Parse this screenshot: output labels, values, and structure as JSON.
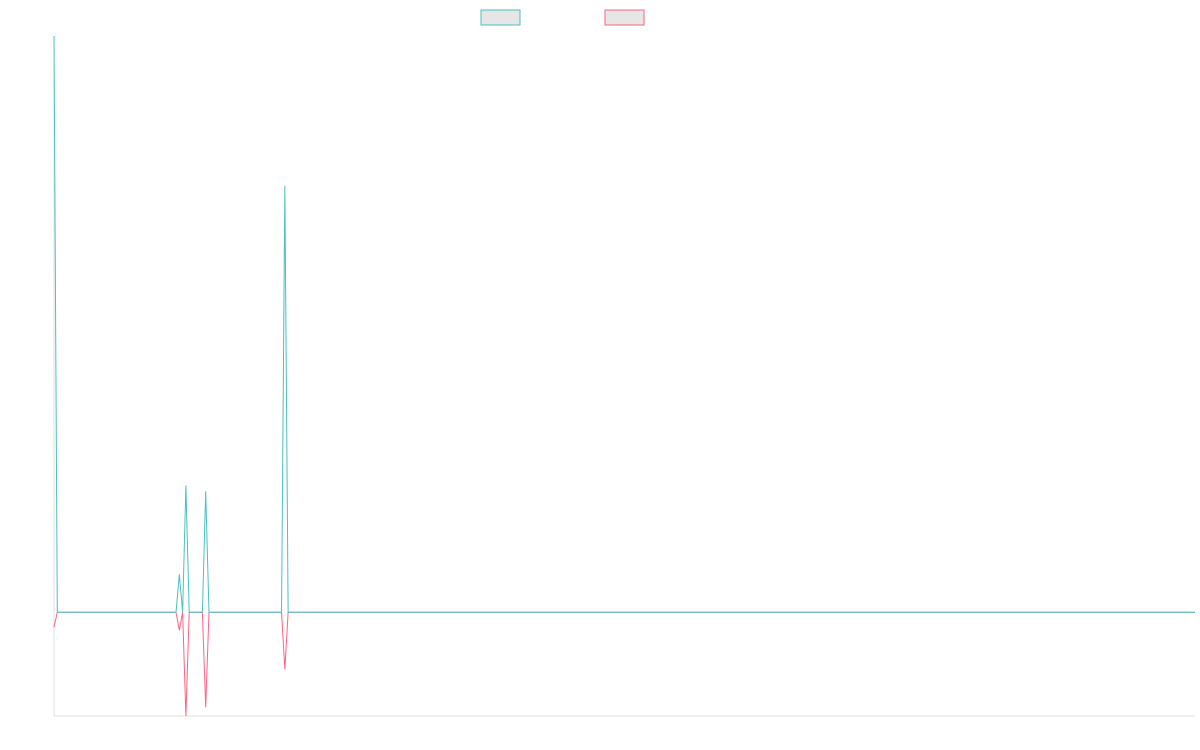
{
  "chart_data": {
    "type": "line",
    "x": [
      0,
      1,
      37,
      38,
      39,
      40,
      41,
      45,
      46,
      47,
      69,
      70,
      71,
      346
    ],
    "xlim": [
      0,
      346
    ],
    "ylim": [
      -18,
      100
    ],
    "series": [
      {
        "color": "#4bc0c0",
        "values": [
          100,
          0,
          0,
          6.6,
          0,
          22,
          0,
          0,
          21,
          0,
          0,
          74,
          0,
          0
        ]
      },
      {
        "color": "#ff6384",
        "values": [
          -2.6,
          0,
          0,
          -3.1,
          0,
          -18,
          0,
          0,
          -16.5,
          0,
          0,
          -9.9,
          0,
          0
        ]
      }
    ]
  }
}
